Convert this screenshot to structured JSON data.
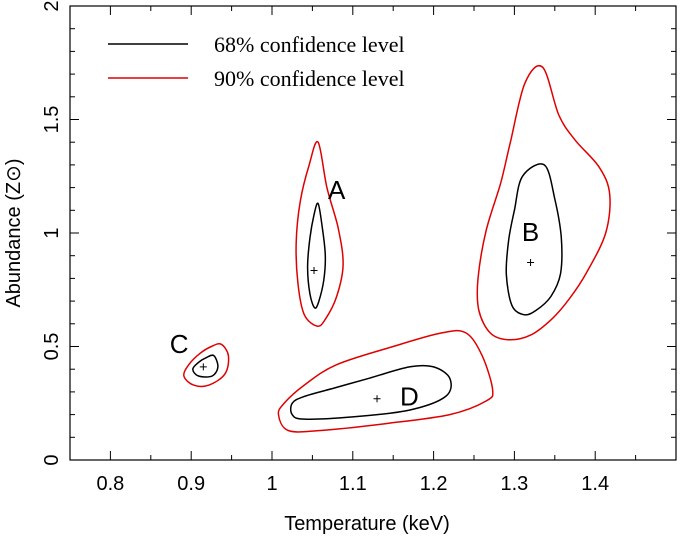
{
  "chart_data": {
    "type": "contour",
    "title": "",
    "xlabel": "Temperature (keV)",
    "ylabel": "Abundance (Z⊙)",
    "xlim": [
      0.75,
      1.5
    ],
    "ylim": [
      0,
      2
    ],
    "xticks": [
      0.8,
      0.9,
      1.0,
      1.1,
      1.2,
      1.3,
      1.4
    ],
    "xtick_labels": [
      "0.8",
      "0.9",
      "1",
      "1.1",
      "1.2",
      "1.3",
      "1.4"
    ],
    "yticks": [
      0,
      0.5,
      1.0,
      1.5,
      2.0
    ],
    "ytick_labels": [
      "0",
      "0.5",
      "1",
      "1.5",
      "2"
    ],
    "legend": {
      "position": "top-left",
      "entries": [
        {
          "label": "68% confidence level",
          "color": "#000000"
        },
        {
          "label": "90% confidence level",
          "color": "#e00000"
        }
      ]
    },
    "regions": [
      {
        "name": "A",
        "best_fit": [
          1.052,
          0.835
        ],
        "label_at": [
          1.08,
          1.19
        ],
        "c68": [
          [
            1.057,
            1.13
          ],
          [
            1.062,
            1.03
          ],
          [
            1.066,
            0.9
          ],
          [
            1.064,
            0.79
          ],
          [
            1.058,
            0.7
          ],
          [
            1.053,
            0.67
          ],
          [
            1.047,
            0.73
          ],
          [
            1.044,
            0.85
          ],
          [
            1.047,
            0.98
          ],
          [
            1.052,
            1.08
          ],
          [
            1.057,
            1.13
          ]
        ],
        "c90": [
          [
            1.057,
            1.4
          ],
          [
            1.068,
            1.2
          ],
          [
            1.082,
            1.02
          ],
          [
            1.088,
            0.86
          ],
          [
            1.08,
            0.72
          ],
          [
            1.066,
            0.62
          ],
          [
            1.056,
            0.59
          ],
          [
            1.04,
            0.64
          ],
          [
            1.032,
            0.78
          ],
          [
            1.03,
            0.96
          ],
          [
            1.035,
            1.14
          ],
          [
            1.046,
            1.3
          ],
          [
            1.057,
            1.4
          ]
        ]
      },
      {
        "name": "B",
        "best_fit": [
          1.32,
          0.87
        ],
        "label_at": [
          1.32,
          1.005
        ],
        "c68": [
          [
            1.337,
            1.3
          ],
          [
            1.35,
            1.15
          ],
          [
            1.358,
            0.98
          ],
          [
            1.357,
            0.82
          ],
          [
            1.345,
            0.72
          ],
          [
            1.327,
            0.66
          ],
          [
            1.312,
            0.64
          ],
          [
            1.297,
            0.68
          ],
          [
            1.29,
            0.82
          ],
          [
            1.293,
            0.97
          ],
          [
            1.3,
            1.1
          ],
          [
            1.31,
            1.25
          ],
          [
            1.337,
            1.3
          ]
        ],
        "c90": [
          [
            1.335,
            1.73
          ],
          [
            1.355,
            1.52
          ],
          [
            1.375,
            1.41
          ],
          [
            1.405,
            1.29
          ],
          [
            1.418,
            1.17
          ],
          [
            1.413,
            1.0
          ],
          [
            1.39,
            0.83
          ],
          [
            1.368,
            0.71
          ],
          [
            1.346,
            0.62
          ],
          [
            1.32,
            0.55
          ],
          [
            1.292,
            0.53
          ],
          [
            1.27,
            0.56
          ],
          [
            1.256,
            0.66
          ],
          [
            1.255,
            0.8
          ],
          [
            1.265,
            1.01
          ],
          [
            1.283,
            1.22
          ],
          [
            1.295,
            1.4
          ],
          [
            1.313,
            1.66
          ],
          [
            1.335,
            1.73
          ]
        ]
      },
      {
        "name": "C",
        "best_fit": [
          0.915,
          0.41
        ],
        "label_at": [
          0.885,
          0.51
        ],
        "c68": [
          [
            0.928,
            0.46
          ],
          [
            0.933,
            0.41
          ],
          [
            0.926,
            0.37
          ],
          [
            0.909,
            0.37
          ],
          [
            0.902,
            0.4
          ],
          [
            0.909,
            0.43
          ],
          [
            0.918,
            0.45
          ],
          [
            0.928,
            0.46
          ]
        ],
        "c68_note": "closed",
        "c90": [
          [
            0.937,
            0.51
          ],
          [
            0.946,
            0.46
          ],
          [
            0.942,
            0.38
          ],
          [
            0.922,
            0.33
          ],
          [
            0.903,
            0.33
          ],
          [
            0.891,
            0.37
          ],
          [
            0.897,
            0.42
          ],
          [
            0.911,
            0.47
          ],
          [
            0.925,
            0.5
          ],
          [
            0.937,
            0.51
          ]
        ]
      },
      {
        "name": "D",
        "best_fit": [
          1.13,
          0.27
        ],
        "label_at": [
          1.17,
          0.28
        ],
        "c68": [
          [
            1.025,
            0.25
          ],
          [
            1.04,
            0.28
          ],
          [
            1.08,
            0.32
          ],
          [
            1.12,
            0.36
          ],
          [
            1.17,
            0.41
          ],
          [
            1.2,
            0.41
          ],
          [
            1.22,
            0.36
          ],
          [
            1.215,
            0.28
          ],
          [
            1.17,
            0.22
          ],
          [
            1.1,
            0.19
          ],
          [
            1.04,
            0.18
          ],
          [
            1.025,
            0.2
          ],
          [
            1.025,
            0.25
          ]
        ],
        "c90": [
          [
            1.015,
            0.25
          ],
          [
            1.04,
            0.33
          ],
          [
            1.08,
            0.42
          ],
          [
            1.15,
            0.5
          ],
          [
            1.21,
            0.56
          ],
          [
            1.24,
            0.56
          ],
          [
            1.26,
            0.46
          ],
          [
            1.273,
            0.31
          ],
          [
            1.265,
            0.26
          ],
          [
            1.22,
            0.2
          ],
          [
            1.14,
            0.16
          ],
          [
            1.06,
            0.13
          ],
          [
            1.02,
            0.13
          ],
          [
            1.008,
            0.2
          ],
          [
            1.015,
            0.25
          ]
        ]
      }
    ]
  }
}
